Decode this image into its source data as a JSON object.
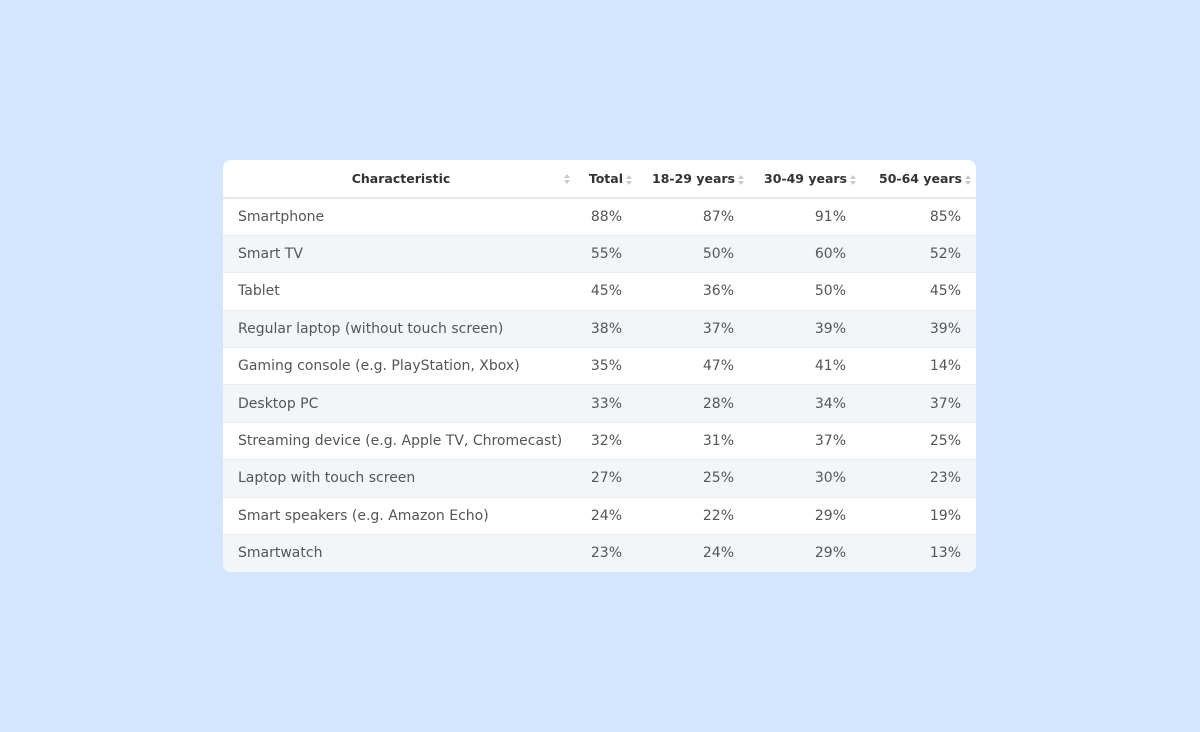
{
  "chart_data": {
    "type": "table",
    "columns": [
      "Characteristic",
      "Total",
      "18-29 years",
      "30-49 years",
      "50-64 years"
    ],
    "rows": [
      {
        "label": "Smartphone",
        "values": [
          "88%",
          "87%",
          "91%",
          "85%"
        ]
      },
      {
        "label": "Smart TV",
        "values": [
          "55%",
          "50%",
          "60%",
          "52%"
        ]
      },
      {
        "label": "Tablet",
        "values": [
          "45%",
          "36%",
          "50%",
          "45%"
        ]
      },
      {
        "label": "Regular laptop (without touch screen)",
        "values": [
          "38%",
          "37%",
          "39%",
          "39%"
        ]
      },
      {
        "label": "Gaming console (e.g. PlayStation, Xbox)",
        "values": [
          "35%",
          "47%",
          "41%",
          "14%"
        ]
      },
      {
        "label": "Desktop PC",
        "values": [
          "33%",
          "28%",
          "34%",
          "37%"
        ]
      },
      {
        "label": "Streaming device (e.g. Apple TV, Chromecast)",
        "values": [
          "32%",
          "31%",
          "37%",
          "25%"
        ]
      },
      {
        "label": "Laptop with touch screen",
        "values": [
          "27%",
          "25%",
          "30%",
          "23%"
        ]
      },
      {
        "label": "Smart speakers (e.g. Amazon Echo)",
        "values": [
          "24%",
          "22%",
          "29%",
          "19%"
        ]
      },
      {
        "label": "Smartwatch",
        "values": [
          "23%",
          "24%",
          "29%",
          "13%"
        ]
      }
    ]
  },
  "icons": {
    "sort": "sort-icon"
  },
  "colors": {
    "page_background": "#d3e6fd",
    "card_background": "#ffffff",
    "striped_row": "#f3f6f9",
    "header_text": "#333333",
    "cell_text": "#555555",
    "sort_arrows": "#c8c8c8"
  }
}
